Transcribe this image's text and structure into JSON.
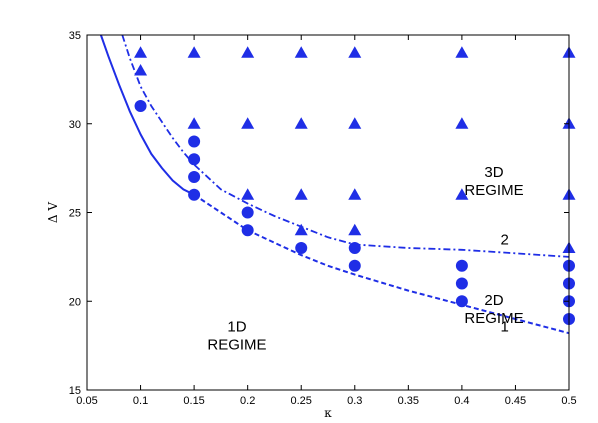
{
  "chart_data": {
    "type": "scatter",
    "xlabel": "κ",
    "ylabel": "Δ V",
    "xlim": [
      0.05,
      0.5
    ],
    "ylim": [
      15,
      35
    ],
    "xticks": [
      "0.05",
      "0.1",
      "0.15",
      "0.2",
      "0.25",
      "0.3",
      "0.35",
      "0.4",
      "0.45",
      "0.5"
    ],
    "yticks": [
      "15",
      "20",
      "25",
      "30",
      "35"
    ],
    "grid": false,
    "legend": "none",
    "colors": {
      "marker": "#1f2ee6",
      "axes": "#000000"
    },
    "series": [
      {
        "marker": "triangle",
        "points": [
          [
            0.1,
            34
          ],
          [
            0.1,
            33
          ],
          [
            0.15,
            34
          ],
          [
            0.2,
            34
          ],
          [
            0.25,
            34
          ],
          [
            0.3,
            34
          ],
          [
            0.4,
            34
          ],
          [
            0.5,
            34
          ],
          [
            0.15,
            30
          ],
          [
            0.2,
            30
          ],
          [
            0.25,
            30
          ],
          [
            0.3,
            30
          ],
          [
            0.4,
            30
          ],
          [
            0.5,
            30
          ],
          [
            0.2,
            26
          ],
          [
            0.25,
            26
          ],
          [
            0.3,
            26
          ],
          [
            0.4,
            26
          ],
          [
            0.5,
            26
          ],
          [
            0.25,
            24
          ],
          [
            0.3,
            24
          ],
          [
            0.5,
            23
          ]
        ]
      },
      {
        "marker": "circle",
        "points": [
          [
            0.1,
            31
          ],
          [
            0.15,
            29
          ],
          [
            0.15,
            28
          ],
          [
            0.15,
            27
          ],
          [
            0.15,
            26
          ],
          [
            0.2,
            25
          ],
          [
            0.2,
            24
          ],
          [
            0.25,
            23
          ],
          [
            0.3,
            23
          ],
          [
            0.3,
            22
          ],
          [
            0.4,
            22
          ],
          [
            0.4,
            21
          ],
          [
            0.4,
            20
          ],
          [
            0.5,
            22
          ],
          [
            0.5,
            21
          ],
          [
            0.5,
            20
          ],
          [
            0.5,
            19
          ]
        ]
      }
    ],
    "curves": [
      {
        "style": "solid",
        "points": [
          [
            0.063,
            35
          ],
          [
            0.07,
            33.8
          ],
          [
            0.08,
            32.2
          ],
          [
            0.09,
            30.7
          ],
          [
            0.1,
            29.4
          ],
          [
            0.11,
            28.3
          ],
          [
            0.12,
            27.5
          ],
          [
            0.13,
            26.8
          ],
          [
            0.14,
            26.3
          ],
          [
            0.15,
            26.0
          ]
        ]
      },
      {
        "style": "dashed",
        "points": [
          [
            0.15,
            26.0
          ],
          [
            0.175,
            25.0
          ],
          [
            0.2,
            24.0
          ],
          [
            0.225,
            23.3
          ],
          [
            0.25,
            22.6
          ],
          [
            0.275,
            22.0
          ],
          [
            0.3,
            21.5
          ],
          [
            0.35,
            20.6
          ],
          [
            0.4,
            19.8
          ],
          [
            0.45,
            19.0
          ],
          [
            0.5,
            18.2
          ]
        ]
      },
      {
        "style": "dashdot",
        "points": [
          [
            0.083,
            35
          ],
          [
            0.09,
            33.7
          ],
          [
            0.1,
            32.1
          ],
          [
            0.11,
            31.0
          ],
          [
            0.12,
            30.1
          ],
          [
            0.13,
            29.2
          ],
          [
            0.14,
            28.4
          ],
          [
            0.15,
            27.7
          ],
          [
            0.175,
            26.3
          ],
          [
            0.2,
            25.5
          ],
          [
            0.225,
            24.8
          ],
          [
            0.25,
            24.2
          ],
          [
            0.275,
            23.6
          ],
          [
            0.3,
            23.2
          ],
          [
            0.35,
            23.0
          ],
          [
            0.4,
            22.9
          ],
          [
            0.45,
            22.7
          ],
          [
            0.5,
            22.5
          ]
        ]
      }
    ],
    "annotations": [
      {
        "lines": [
          "3D",
          "REGIME"
        ],
        "x": 0.43,
        "y": 27.0
      },
      {
        "lines": [
          "2D",
          "REGIME"
        ],
        "x": 0.43,
        "y": 19.8
      },
      {
        "lines": [
          "1D",
          "REGIME"
        ],
        "x": 0.19,
        "y": 18.3
      },
      {
        "lines": [
          "2"
        ],
        "x": 0.44,
        "y": 23.2
      },
      {
        "lines": [
          "1"
        ],
        "x": 0.44,
        "y": 18.3
      }
    ]
  }
}
